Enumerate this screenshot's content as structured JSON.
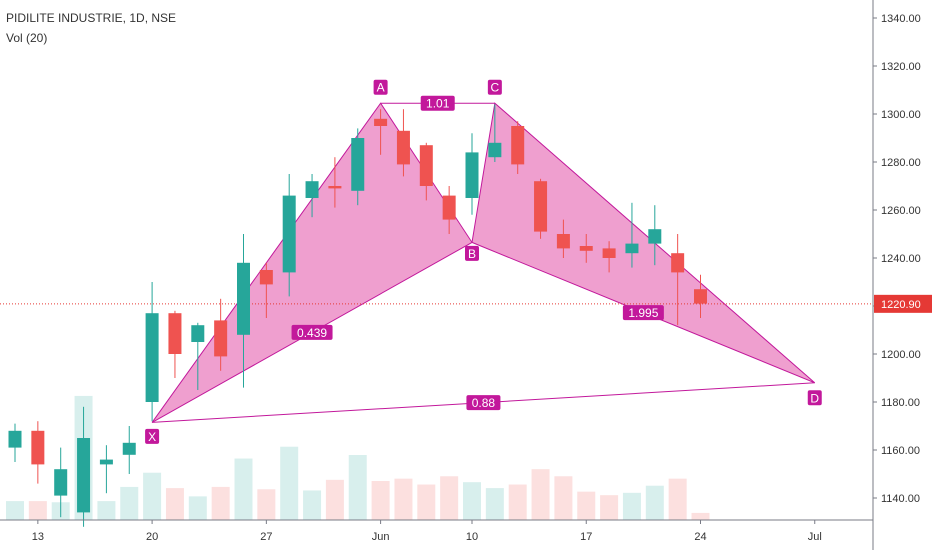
{
  "header": {
    "symbol_line": "PIDILITE INDUSTRIE, 1D, NSE",
    "volume_label": "Vol (20)"
  },
  "price_label": "1220.90",
  "colors": {
    "up": "#26a69a",
    "down": "#ef5350",
    "pattern_fill": "#e040a0",
    "pattern_line": "#c2189b",
    "price_line": "#e53935"
  },
  "chart_data": {
    "type": "candlestick",
    "y_axis_ticks": [
      "1140.00",
      "1160.00",
      "1180.00",
      "1200.00",
      "1220.00",
      "1240.00",
      "1260.00",
      "1280.00",
      "1300.00",
      "1320.00",
      "1340.00"
    ],
    "ylim": [
      1130,
      1348
    ],
    "x_axis_ticks": [
      {
        "label": "13",
        "index": 1
      },
      {
        "label": "20",
        "index": 6
      },
      {
        "label": "27",
        "index": 11
      },
      {
        "label": "Jun",
        "index": 16
      },
      {
        "label": "10",
        "index": 20
      },
      {
        "label": "17",
        "index": 25
      },
      {
        "label": "24",
        "index": 30
      },
      {
        "label": "Jul",
        "index": 35
      }
    ],
    "current_price": 1220.9,
    "candles": [
      {
        "o": 1161,
        "h": 1171,
        "l": 1155,
        "c": 1168,
        "v": 16
      },
      {
        "o": 1168,
        "h": 1172,
        "l": 1146,
        "c": 1154,
        "v": 16
      },
      {
        "o": 1141,
        "h": 1161,
        "l": 1132,
        "c": 1152,
        "v": 15
      },
      {
        "o": 1134,
        "h": 1178,
        "l": 1128,
        "c": 1165,
        "v": 105
      },
      {
        "o": 1154,
        "h": 1162,
        "l": 1142,
        "c": 1156,
        "v": 16
      },
      {
        "o": 1158,
        "h": 1170,
        "l": 1150,
        "c": 1163,
        "v": 28
      },
      {
        "o": 1180,
        "h": 1230,
        "l": 1172,
        "c": 1217,
        "v": 40
      },
      {
        "o": 1217,
        "h": 1218,
        "l": 1190,
        "c": 1200,
        "v": 27
      },
      {
        "o": 1205,
        "h": 1213,
        "l": 1185,
        "c": 1212,
        "v": 20
      },
      {
        "o": 1214,
        "h": 1223,
        "l": 1193,
        "c": 1199,
        "v": 28
      },
      {
        "o": 1208,
        "h": 1250,
        "l": 1186,
        "c": 1238,
        "v": 52
      },
      {
        "o": 1235,
        "h": 1238,
        "l": 1215,
        "c": 1229,
        "v": 26
      },
      {
        "o": 1234,
        "h": 1275,
        "l": 1224,
        "c": 1266,
        "v": 62
      },
      {
        "o": 1265,
        "h": 1275,
        "l": 1257,
        "c": 1272,
        "v": 25
      },
      {
        "o": 1270,
        "h": 1282,
        "l": 1261,
        "c": 1269,
        "v": 34
      },
      {
        "o": 1268,
        "h": 1294,
        "l": 1262,
        "c": 1290,
        "v": 55
      },
      {
        "o": 1298,
        "h": 1302,
        "l": 1283,
        "c": 1295,
        "v": 33
      },
      {
        "o": 1293,
        "h": 1302,
        "l": 1274,
        "c": 1279,
        "v": 35
      },
      {
        "o": 1287,
        "h": 1288,
        "l": 1264,
        "c": 1270,
        "v": 30
      },
      {
        "o": 1266,
        "h": 1270,
        "l": 1250,
        "c": 1256,
        "v": 37
      },
      {
        "o": 1265,
        "h": 1292,
        "l": 1258,
        "c": 1284,
        "v": 32
      },
      {
        "o": 1282,
        "h": 1304,
        "l": 1280,
        "c": 1288,
        "v": 27
      },
      {
        "o": 1295,
        "h": 1297,
        "l": 1275,
        "c": 1279,
        "v": 30
      },
      {
        "o": 1272,
        "h": 1273,
        "l": 1248,
        "c": 1251,
        "v": 43
      },
      {
        "o": 1250,
        "h": 1256,
        "l": 1240,
        "c": 1244,
        "v": 37
      },
      {
        "o": 1245,
        "h": 1250,
        "l": 1238,
        "c": 1243,
        "v": 24
      },
      {
        "o": 1244,
        "h": 1247,
        "l": 1234,
        "c": 1240,
        "v": 21
      },
      {
        "o": 1242,
        "h": 1263,
        "l": 1236,
        "c": 1246,
        "v": 23
      },
      {
        "o": 1246,
        "h": 1262,
        "l": 1237,
        "c": 1252,
        "v": 29
      },
      {
        "o": 1242,
        "h": 1250,
        "l": 1212,
        "c": 1234,
        "v": 35
      },
      {
        "o": 1227,
        "h": 1233,
        "l": 1215,
        "c": 1221,
        "v": 6
      }
    ],
    "pattern": {
      "points": [
        {
          "label": "X",
          "i": 6,
          "price": 1171.5
        },
        {
          "label": "A",
          "i": 16,
          "price": 1304.5
        },
        {
          "label": "B",
          "i": 20,
          "price": 1246.5
        },
        {
          "label": "C",
          "i": 21,
          "price": 1304.5
        },
        {
          "label": "D",
          "i": 35,
          "price": 1188
        }
      ],
      "ratios": {
        "XAB": "0.439",
        "AC": "1.01",
        "BCD": "1.995",
        "XD": "0.88"
      }
    }
  }
}
